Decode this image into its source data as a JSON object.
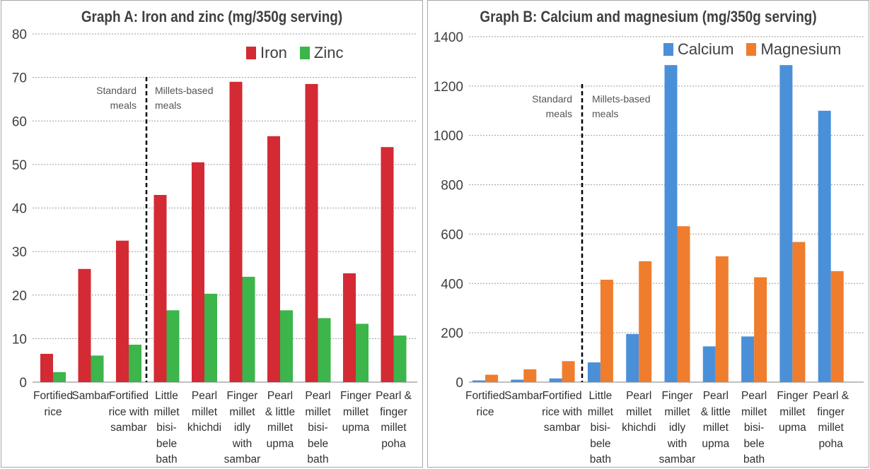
{
  "chart_data": [
    {
      "type": "bar",
      "title": "Graph A: Iron and zinc (mg/350g serving)",
      "categories": [
        "Fortified\nrice",
        "Sambar",
        "Fortified\nrice with\nsambar",
        "Little\nmillet\nbisi-\nbele\nbath",
        "Pearl\nmillet\nkhichdi",
        "Finger\nmillet\nidly\nwith\nsambar",
        "Pearl\n& little\nmillet\nupma",
        "Pearl\nmillet\nbisi-\nbele\nbath",
        "Finger\nmillet\nupma",
        "Pearl &\nfinger\nmillet\npoha"
      ],
      "series": [
        {
          "name": "Iron",
          "color": "#d42a34",
          "values": [
            6.5,
            26,
            32.5,
            43,
            50.5,
            69,
            56.5,
            68.5,
            25,
            54
          ]
        },
        {
          "name": "Zinc",
          "color": "#3cb54a",
          "values": [
            2.3,
            6.1,
            8.6,
            16.5,
            20.3,
            24.2,
            16.5,
            14.7,
            13.4,
            10.7
          ]
        }
      ],
      "ylim": [
        0,
        80
      ],
      "yticks": [
        0,
        10,
        20,
        30,
        40,
        50,
        60,
        70,
        80
      ],
      "grid": true,
      "legend": "top-right",
      "annotations": {
        "left": "Standard\nmeals",
        "right": "Millets-based\nmeals"
      }
    },
    {
      "type": "bar",
      "title": "Graph B: Calcium and magnesium (mg/350g serving)",
      "categories": [
        "Fortified\nrice",
        "Sambar",
        "Fortified\nrice with\nsambar",
        "Little\nmillet\nbisi-\nbele\nbath",
        "Pearl\nmillet\nkhichdi",
        "Finger\nmillet\nidly\nwith\nsambar",
        "Pearl\n& little\nmillet\nupma",
        "Pearl\nmillet\nbisi-\nbele\nbath",
        "Finger\nmillet\nupma",
        "Pearl &\nfinger\nmillet\npoha"
      ],
      "series": [
        {
          "name": "Calcium",
          "color": "#4a90d9",
          "values": [
            7,
            10,
            15,
            80,
            195,
            1285,
            145,
            185,
            1285,
            1100
          ]
        },
        {
          "name": "Magnesium",
          "color": "#ef7d2d",
          "values": [
            30,
            52,
            85,
            415,
            490,
            632,
            510,
            425,
            568,
            450
          ]
        }
      ],
      "ylim": [
        0,
        1400
      ],
      "yticks": [
        0,
        200,
        400,
        600,
        800,
        1000,
        1200,
        1400
      ],
      "grid": true,
      "legend": "top-right",
      "annotations": {
        "left": "Standard\nmeals",
        "right": "Millets-based\nmeals"
      }
    }
  ]
}
